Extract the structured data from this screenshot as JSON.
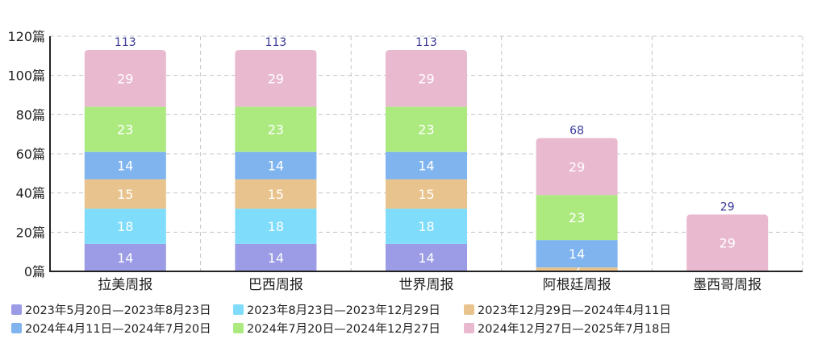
{
  "chart_data": {
    "type": "bar",
    "stacked": true,
    "categories": [
      "拉美周报",
      "巴西周报",
      "世界周报",
      "阿根廷周报",
      "墨西哥周报"
    ],
    "series": [
      {
        "name": "2023年5月20日—2023年8月23日",
        "color": "#9b9be6",
        "values": [
          14,
          14,
          14,
          0,
          0
        ]
      },
      {
        "name": "2023年8月23日—2023年12月29日",
        "color": "#7fdcfa",
        "values": [
          18,
          18,
          18,
          0,
          0
        ]
      },
      {
        "name": "2023年12月29日—2024年4月11日",
        "color": "#e8c38d",
        "values": [
          15,
          15,
          15,
          2,
          0
        ]
      },
      {
        "name": "2024年4月11日—2024年7月20日",
        "color": "#7fb4ee",
        "values": [
          14,
          14,
          14,
          14,
          0
        ]
      },
      {
        "name": "2024年7月20日—2024年12月27日",
        "color": "#acea80",
        "values": [
          23,
          23,
          23,
          23,
          0
        ]
      },
      {
        "name": "2024年12月27日—2025年7月18日",
        "color": "#e9b9d0",
        "values": [
          29,
          29,
          29,
          29,
          29
        ]
      }
    ],
    "totals": [
      113,
      113,
      113,
      68,
      29
    ],
    "yticks": [
      "0篇",
      "20篇",
      "40篇",
      "60篇",
      "80篇",
      "100篇",
      "120篇"
    ],
    "ylim": [
      0,
      120
    ],
    "grid": true,
    "legend_position": "bottom"
  }
}
